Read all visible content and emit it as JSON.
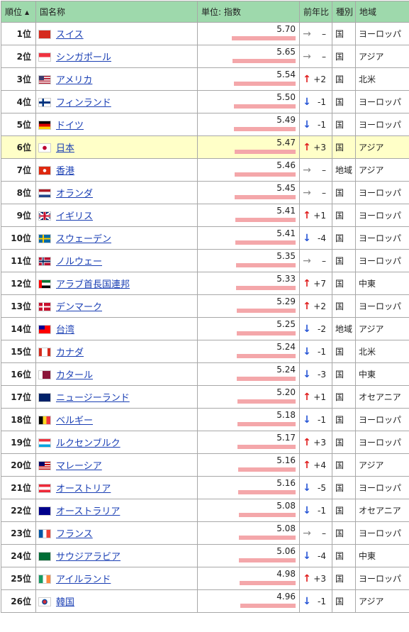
{
  "header": {
    "rank": "順位",
    "sort_icon": "sort-ascending-icon",
    "country": "国名称",
    "unit": "単位: 指数",
    "yoy": "前年比",
    "type": "種別",
    "region": "地域"
  },
  "scale": {
    "max_value": 5.7
  },
  "colors": {
    "header_bg": "#9ed9ac",
    "highlight_row": "#ffffc8",
    "bar": "#f4a7aa",
    "up": "#e01e1e",
    "down": "#2856d6",
    "same": "#888888",
    "link": "#1a3fb4"
  },
  "rows": [
    {
      "rank": "1位",
      "flag": "ch",
      "name": "スイス",
      "value": 5.7,
      "value_text": "5.70",
      "dir": "same",
      "change": "–",
      "type": "国",
      "region": "ヨーロッパ"
    },
    {
      "rank": "2位",
      "flag": "sg",
      "name": "シンガポール",
      "value": 5.65,
      "value_text": "5.65",
      "dir": "same",
      "change": "–",
      "type": "国",
      "region": "アジア"
    },
    {
      "rank": "3位",
      "flag": "us",
      "name": "アメリカ",
      "value": 5.54,
      "value_text": "5.54",
      "dir": "up",
      "change": "+2",
      "type": "国",
      "region": "北米"
    },
    {
      "rank": "4位",
      "flag": "fi",
      "name": "フィンランド",
      "value": 5.5,
      "value_text": "5.50",
      "dir": "down",
      "change": "-1",
      "type": "国",
      "region": "ヨーロッパ"
    },
    {
      "rank": "5位",
      "flag": "de",
      "name": "ドイツ",
      "value": 5.49,
      "value_text": "5.49",
      "dir": "down",
      "change": "-1",
      "type": "国",
      "region": "ヨーロッパ"
    },
    {
      "rank": "6位",
      "flag": "jp",
      "name": "日本",
      "value": 5.47,
      "value_text": "5.47",
      "dir": "up",
      "change": "+3",
      "type": "国",
      "region": "アジア",
      "highlight": true
    },
    {
      "rank": "7位",
      "flag": "hk",
      "name": "香港",
      "value": 5.46,
      "value_text": "5.46",
      "dir": "same",
      "change": "–",
      "type": "地域",
      "region": "アジア"
    },
    {
      "rank": "8位",
      "flag": "nl",
      "name": "オランダ",
      "value": 5.45,
      "value_text": "5.45",
      "dir": "same",
      "change": "–",
      "type": "国",
      "region": "ヨーロッパ"
    },
    {
      "rank": "9位",
      "flag": "gb",
      "name": "イギリス",
      "value": 5.41,
      "value_text": "5.41",
      "dir": "up",
      "change": "+1",
      "type": "国",
      "region": "ヨーロッパ"
    },
    {
      "rank": "10位",
      "flag": "se",
      "name": "スウェーデン",
      "value": 5.41,
      "value_text": "5.41",
      "dir": "down",
      "change": "-4",
      "type": "国",
      "region": "ヨーロッパ"
    },
    {
      "rank": "11位",
      "flag": "no",
      "name": "ノルウェー",
      "value": 5.35,
      "value_text": "5.35",
      "dir": "same",
      "change": "–",
      "type": "国",
      "region": "ヨーロッパ"
    },
    {
      "rank": "12位",
      "flag": "ae",
      "name": "アラブ首長国連邦",
      "value": 5.33,
      "value_text": "5.33",
      "dir": "up",
      "change": "+7",
      "type": "国",
      "region": "中東"
    },
    {
      "rank": "13位",
      "flag": "dk",
      "name": "デンマーク",
      "value": 5.29,
      "value_text": "5.29",
      "dir": "up",
      "change": "+2",
      "type": "国",
      "region": "ヨーロッパ"
    },
    {
      "rank": "14位",
      "flag": "tw",
      "name": "台湾",
      "value": 5.25,
      "value_text": "5.25",
      "dir": "down",
      "change": "-2",
      "type": "地域",
      "region": "アジア"
    },
    {
      "rank": "15位",
      "flag": "ca",
      "name": "カナダ",
      "value": 5.24,
      "value_text": "5.24",
      "dir": "down",
      "change": "-1",
      "type": "国",
      "region": "北米"
    },
    {
      "rank": "16位",
      "flag": "qa",
      "name": "カタール",
      "value": 5.24,
      "value_text": "5.24",
      "dir": "down",
      "change": "-3",
      "type": "国",
      "region": "中東"
    },
    {
      "rank": "17位",
      "flag": "nz",
      "name": "ニュージーランド",
      "value": 5.2,
      "value_text": "5.20",
      "dir": "up",
      "change": "+1",
      "type": "国",
      "region": "オセアニア"
    },
    {
      "rank": "18位",
      "flag": "be",
      "name": "ベルギー",
      "value": 5.18,
      "value_text": "5.18",
      "dir": "down",
      "change": "-1",
      "type": "国",
      "region": "ヨーロッパ"
    },
    {
      "rank": "19位",
      "flag": "lu",
      "name": "ルクセンブルク",
      "value": 5.17,
      "value_text": "5.17",
      "dir": "up",
      "change": "+3",
      "type": "国",
      "region": "ヨーロッパ"
    },
    {
      "rank": "20位",
      "flag": "my",
      "name": "マレーシア",
      "value": 5.16,
      "value_text": "5.16",
      "dir": "up",
      "change": "+4",
      "type": "国",
      "region": "アジア"
    },
    {
      "rank": "21位",
      "flag": "at",
      "name": "オーストリア",
      "value": 5.16,
      "value_text": "5.16",
      "dir": "down",
      "change": "-5",
      "type": "国",
      "region": "ヨーロッパ"
    },
    {
      "rank": "22位",
      "flag": "au",
      "name": "オーストラリア",
      "value": 5.08,
      "value_text": "5.08",
      "dir": "down",
      "change": "-1",
      "type": "国",
      "region": "オセアニア"
    },
    {
      "rank": "23位",
      "flag": "fr",
      "name": "フランス",
      "value": 5.08,
      "value_text": "5.08",
      "dir": "same",
      "change": "–",
      "type": "国",
      "region": "ヨーロッパ"
    },
    {
      "rank": "24位",
      "flag": "sa",
      "name": "サウジアラビア",
      "value": 5.06,
      "value_text": "5.06",
      "dir": "down",
      "change": "-4",
      "type": "国",
      "region": "中東"
    },
    {
      "rank": "25位",
      "flag": "ie",
      "name": "アイルランド",
      "value": 4.98,
      "value_text": "4.98",
      "dir": "up",
      "change": "+3",
      "type": "国",
      "region": "ヨーロッパ"
    },
    {
      "rank": "26位",
      "flag": "kr",
      "name": "韓国",
      "value": 4.96,
      "value_text": "4.96",
      "dir": "down",
      "change": "-1",
      "type": "国",
      "region": "アジア"
    }
  ]
}
